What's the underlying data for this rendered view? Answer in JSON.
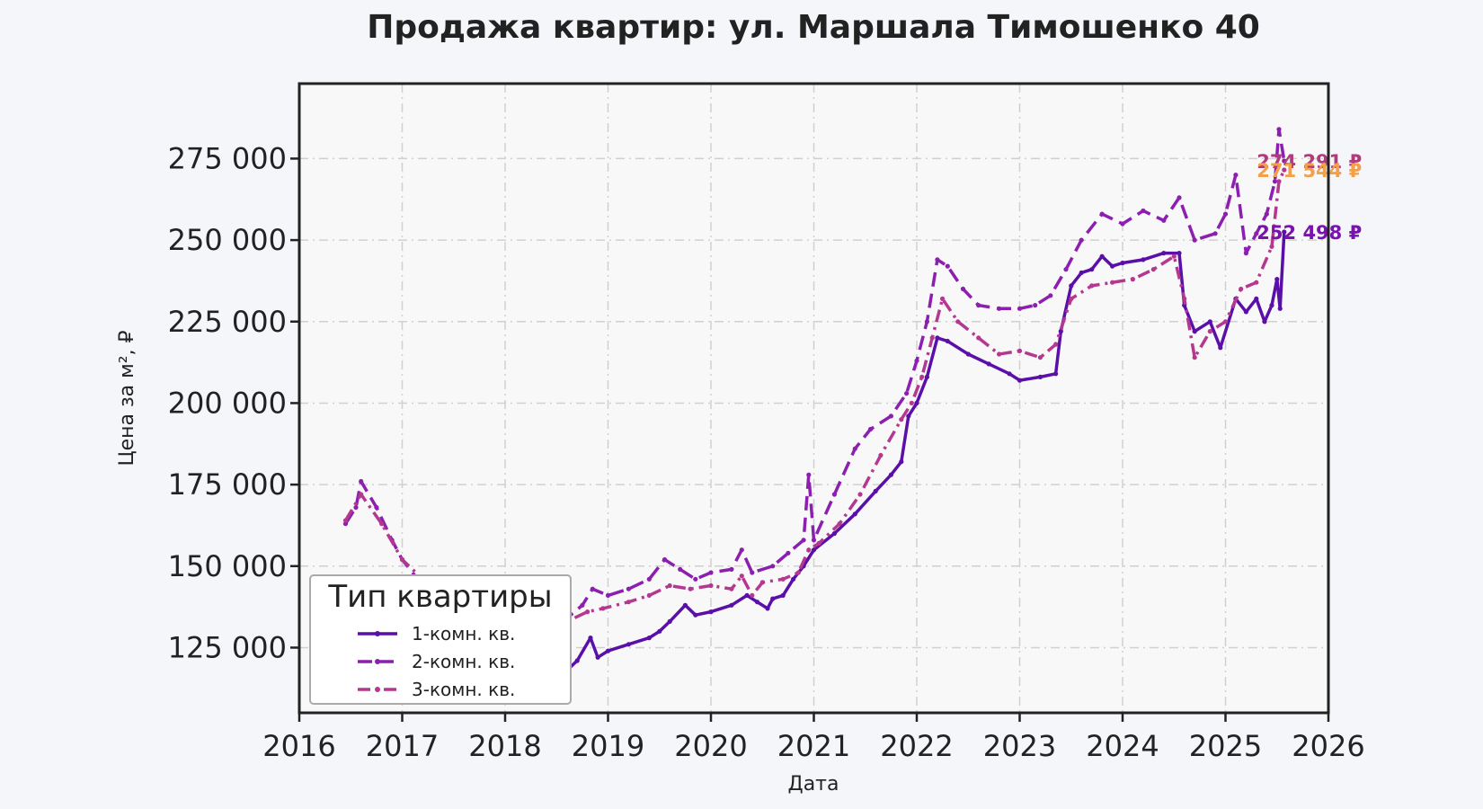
{
  "chart_data": {
    "type": "line",
    "title": "Продажа квартир: ул. Маршала Тимошенко 40",
    "xlabel": "Дата",
    "ylabel": "Цена за м², ₽",
    "xlim": [
      2016,
      2026
    ],
    "ylim": [
      105000,
      298000
    ],
    "x_ticks": [
      "2016",
      "2017",
      "2018",
      "2019",
      "2020",
      "2021",
      "2022",
      "2023",
      "2024",
      "2025",
      "2026"
    ],
    "y_ticks": [
      "125 000",
      "150 000",
      "175 000",
      "200 000",
      "225 000",
      "250 000",
      "275 000"
    ],
    "y_tick_values": [
      125000,
      150000,
      175000,
      200000,
      225000,
      250000,
      275000
    ],
    "grid": true,
    "legend": {
      "title": "Тип квартиры",
      "placement": "lower-left"
    },
    "series": [
      {
        "name": "1-комн. кв.",
        "color": "#5a0fa8",
        "style": "solid",
        "end_label": "252 498 ₽",
        "end_label_color": "#7a12b0",
        "points": [
          [
            2016.45,
            125000
          ],
          [
            2016.9,
            123000
          ],
          [
            2017.4,
            120000
          ],
          [
            2017.8,
            117000
          ],
          [
            2018.2,
            114000
          ],
          [
            2018.6,
            118000
          ],
          [
            2018.7,
            121000
          ],
          [
            2018.83,
            128000
          ],
          [
            2018.9,
            122000
          ],
          [
            2019.0,
            124000
          ],
          [
            2019.2,
            126000
          ],
          [
            2019.4,
            128000
          ],
          [
            2019.5,
            130000
          ],
          [
            2019.6,
            133000
          ],
          [
            2019.75,
            138000
          ],
          [
            2019.85,
            135000
          ],
          [
            2020.0,
            136000
          ],
          [
            2020.2,
            138000
          ],
          [
            2020.35,
            141000
          ],
          [
            2020.45,
            139000
          ],
          [
            2020.55,
            137000
          ],
          [
            2020.6,
            140000
          ],
          [
            2020.7,
            141000
          ],
          [
            2020.8,
            146000
          ],
          [
            2020.9,
            150000
          ],
          [
            2021.0,
            155000
          ],
          [
            2021.2,
            160000
          ],
          [
            2021.4,
            166000
          ],
          [
            2021.6,
            173000
          ],
          [
            2021.75,
            178000
          ],
          [
            2021.85,
            182000
          ],
          [
            2021.92,
            196000
          ],
          [
            2022.0,
            200000
          ],
          [
            2022.1,
            208000
          ],
          [
            2022.2,
            220000
          ],
          [
            2022.3,
            219000
          ],
          [
            2022.5,
            215000
          ],
          [
            2022.7,
            212000
          ],
          [
            2022.9,
            209000
          ],
          [
            2023.0,
            207000
          ],
          [
            2023.2,
            208000
          ],
          [
            2023.35,
            209000
          ],
          [
            2023.4,
            222000
          ],
          [
            2023.5,
            236000
          ],
          [
            2023.6,
            240000
          ],
          [
            2023.7,
            241000
          ],
          [
            2023.8,
            245000
          ],
          [
            2023.9,
            242000
          ],
          [
            2024.0,
            243000
          ],
          [
            2024.2,
            244000
          ],
          [
            2024.4,
            246000
          ],
          [
            2024.55,
            246000
          ],
          [
            2024.6,
            230000
          ],
          [
            2024.7,
            222000
          ],
          [
            2024.85,
            225000
          ],
          [
            2024.95,
            217000
          ],
          [
            2025.1,
            232000
          ],
          [
            2025.2,
            228000
          ],
          [
            2025.3,
            232000
          ],
          [
            2025.38,
            225000
          ],
          [
            2025.45,
            230000
          ],
          [
            2025.5,
            238000
          ],
          [
            2025.53,
            229000
          ],
          [
            2025.57,
            252498
          ]
        ]
      },
      {
        "name": "2-комн. кв.",
        "color": "#8c1fb0",
        "style": "dashed",
        "end_label": "274 291 ₽",
        "end_label_color": "#b13a7a",
        "points": [
          [
            2016.45,
            163000
          ],
          [
            2016.55,
            168000
          ],
          [
            2016.6,
            176000
          ],
          [
            2016.75,
            168000
          ],
          [
            2016.9,
            158000
          ],
          [
            2017.0,
            152000
          ],
          [
            2017.2,
            144000
          ],
          [
            2017.4,
            141000
          ],
          [
            2017.6,
            137000
          ],
          [
            2017.8,
            133000
          ],
          [
            2018.0,
            129000
          ],
          [
            2018.2,
            128000
          ],
          [
            2018.4,
            130000
          ],
          [
            2018.6,
            134000
          ],
          [
            2018.75,
            138000
          ],
          [
            2018.85,
            143000
          ],
          [
            2019.0,
            141000
          ],
          [
            2019.2,
            143000
          ],
          [
            2019.4,
            146000
          ],
          [
            2019.55,
            152000
          ],
          [
            2019.7,
            149000
          ],
          [
            2019.85,
            146000
          ],
          [
            2020.0,
            148000
          ],
          [
            2020.2,
            149000
          ],
          [
            2020.3,
            155000
          ],
          [
            2020.4,
            148000
          ],
          [
            2020.6,
            150000
          ],
          [
            2020.75,
            154000
          ],
          [
            2020.9,
            158000
          ],
          [
            2020.95,
            178000
          ],
          [
            2021.0,
            158000
          ],
          [
            2021.2,
            172000
          ],
          [
            2021.4,
            186000
          ],
          [
            2021.55,
            192000
          ],
          [
            2021.75,
            196000
          ],
          [
            2021.9,
            203000
          ],
          [
            2022.0,
            213000
          ],
          [
            2022.1,
            225000
          ],
          [
            2022.2,
            244000
          ],
          [
            2022.3,
            242000
          ],
          [
            2022.45,
            235000
          ],
          [
            2022.6,
            230000
          ],
          [
            2022.8,
            229000
          ],
          [
            2023.0,
            229000
          ],
          [
            2023.15,
            230000
          ],
          [
            2023.3,
            233000
          ],
          [
            2023.45,
            241000
          ],
          [
            2023.6,
            250000
          ],
          [
            2023.8,
            258000
          ],
          [
            2024.0,
            255000
          ],
          [
            2024.2,
            259000
          ],
          [
            2024.4,
            256000
          ],
          [
            2024.55,
            263000
          ],
          [
            2024.7,
            250000
          ],
          [
            2024.9,
            252000
          ],
          [
            2025.0,
            258000
          ],
          [
            2025.1,
            270000
          ],
          [
            2025.2,
            246000
          ],
          [
            2025.3,
            252000
          ],
          [
            2025.4,
            258000
          ],
          [
            2025.48,
            268000
          ],
          [
            2025.52,
            284000
          ],
          [
            2025.57,
            274291
          ]
        ]
      },
      {
        "name": "3-комн. кв.",
        "color": "#b4388f",
        "style": "dashdot",
        "end_label": "271 544 ₽",
        "end_label_color": "#f3a04a",
        "points": [
          [
            2016.45,
            164000
          ],
          [
            2016.6,
            172000
          ],
          [
            2016.8,
            163000
          ],
          [
            2017.0,
            152000
          ],
          [
            2017.2,
            146000
          ],
          [
            2017.45,
            140000
          ],
          [
            2017.7,
            135000
          ],
          [
            2017.9,
            130000
          ],
          [
            2018.1,
            127000
          ],
          [
            2018.35,
            128000
          ],
          [
            2018.6,
            133000
          ],
          [
            2018.8,
            136000
          ],
          [
            2018.95,
            137000
          ],
          [
            2019.2,
            139000
          ],
          [
            2019.4,
            141000
          ],
          [
            2019.6,
            144000
          ],
          [
            2019.8,
            143000
          ],
          [
            2020.0,
            144000
          ],
          [
            2020.2,
            143000
          ],
          [
            2020.3,
            147000
          ],
          [
            2020.4,
            141000
          ],
          [
            2020.5,
            145000
          ],
          [
            2020.7,
            146000
          ],
          [
            2020.85,
            148000
          ],
          [
            2020.95,
            155000
          ],
          [
            2021.05,
            157000
          ],
          [
            2021.25,
            163000
          ],
          [
            2021.45,
            172000
          ],
          [
            2021.65,
            184000
          ],
          [
            2021.85,
            195000
          ],
          [
            2021.95,
            200000
          ],
          [
            2022.05,
            208000
          ],
          [
            2022.15,
            220000
          ],
          [
            2022.25,
            232000
          ],
          [
            2022.4,
            225000
          ],
          [
            2022.6,
            220000
          ],
          [
            2022.8,
            215000
          ],
          [
            2023.0,
            216000
          ],
          [
            2023.2,
            214000
          ],
          [
            2023.35,
            218000
          ],
          [
            2023.5,
            232000
          ],
          [
            2023.7,
            236000
          ],
          [
            2023.9,
            237000
          ],
          [
            2024.1,
            238000
          ],
          [
            2024.3,
            241000
          ],
          [
            2024.5,
            245000
          ],
          [
            2024.6,
            232000
          ],
          [
            2024.7,
            214000
          ],
          [
            2024.85,
            222000
          ],
          [
            2025.0,
            225000
          ],
          [
            2025.15,
            235000
          ],
          [
            2025.3,
            237000
          ],
          [
            2025.45,
            248000
          ],
          [
            2025.52,
            268000
          ],
          [
            2025.57,
            271544
          ]
        ]
      }
    ]
  }
}
